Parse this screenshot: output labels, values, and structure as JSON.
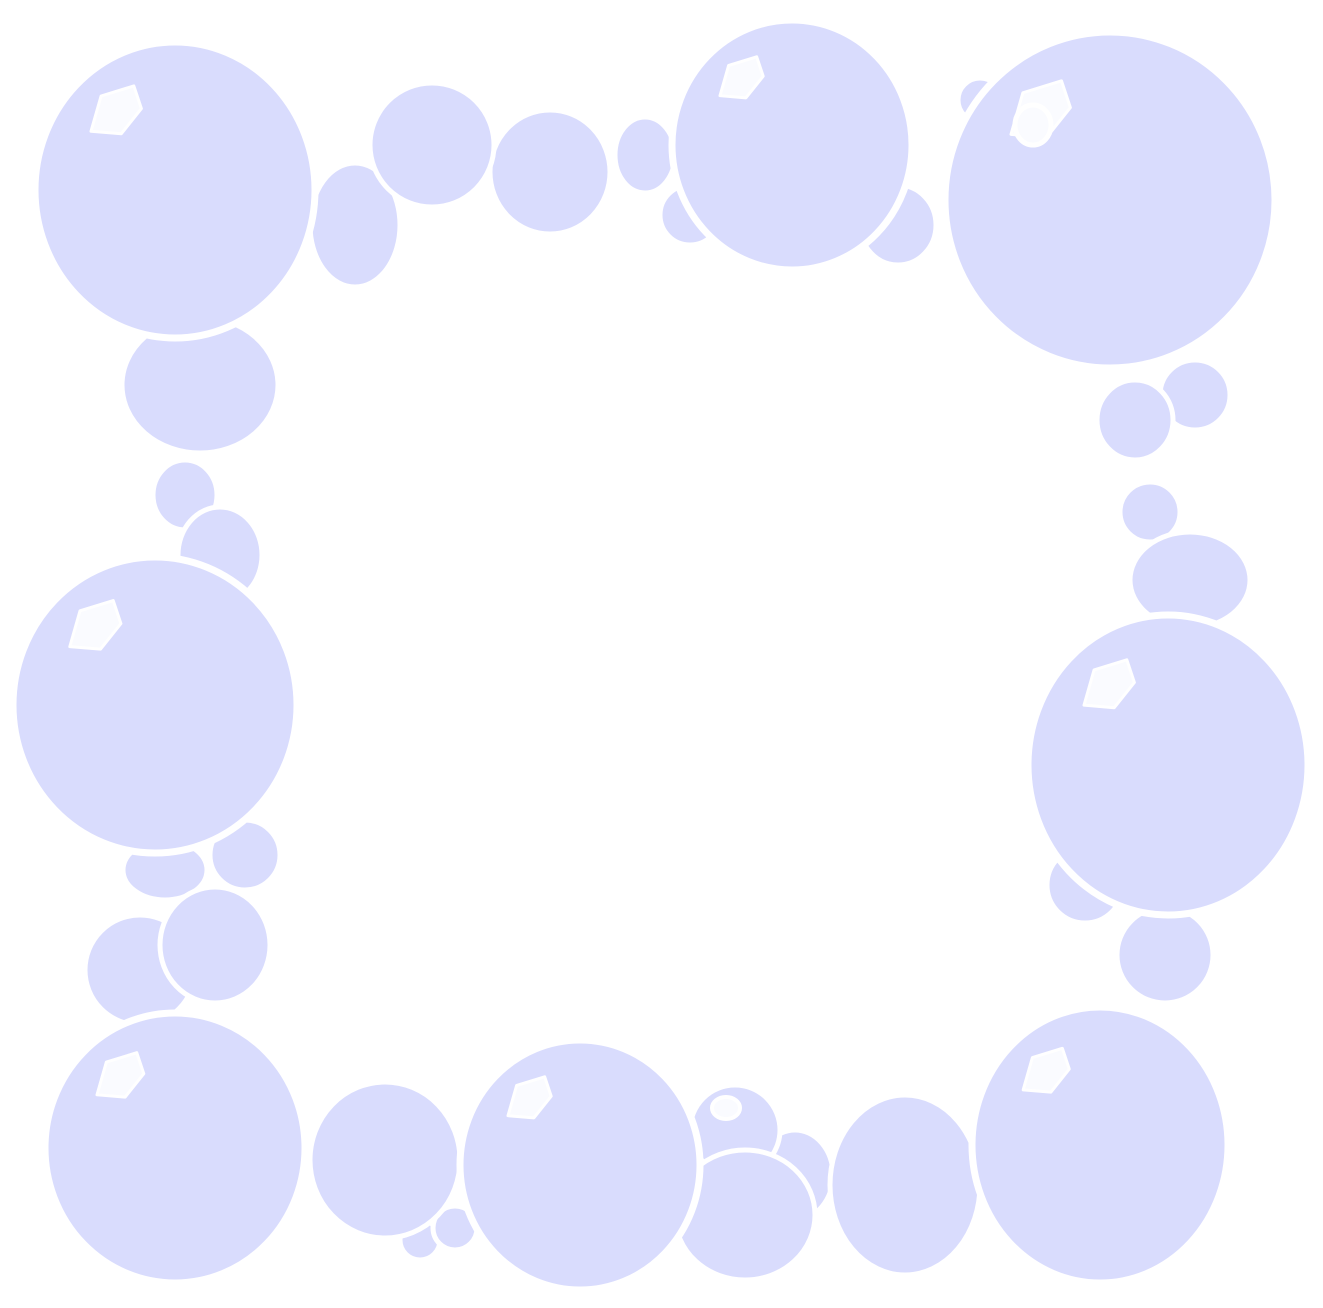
{
  "image": {
    "description_type": "decorative-frame",
    "shape": "square-bubble-border",
    "icon": "bubble-icon"
  },
  "colors": {
    "bubble_fill": "#d9dcfd",
    "bubble_outline": "#ffffff",
    "highlight": "#fafbff",
    "background": "#ffffff"
  }
}
